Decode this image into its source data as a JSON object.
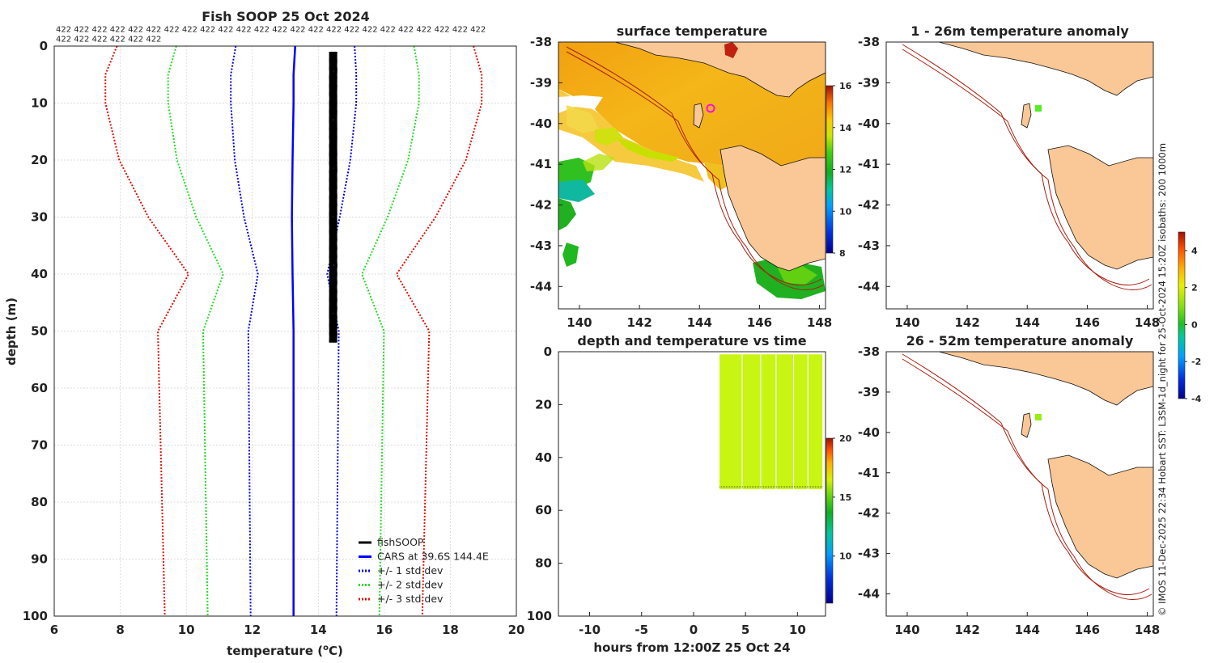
{
  "chart_data": [
    {
      "id": "profile",
      "type": "line",
      "title": "Fish SOOP 25 Oct 2024",
      "xlabel": "temperature (",
      "xlabel_sup": "o",
      "xlabel_end": "C)",
      "ylabel": "depth (m)",
      "xlim": [
        6,
        20
      ],
      "ylim": [
        100,
        0
      ],
      "xticks": [
        "6",
        "8",
        "10",
        "12",
        "14",
        "16",
        "18",
        "20"
      ],
      "yticks": [
        "0",
        "10",
        "20",
        "30",
        "40",
        "50",
        "60",
        "70",
        "80",
        "90",
        "100"
      ],
      "grid": true,
      "header_counts": [
        "422 422 422 422 422 422 422 422 422 422 422 422 422 422 422 422 422 422 422 422 422 422 422 422",
        "422 422 422 422 422 422"
      ],
      "legend_position": "bottom-right",
      "legend": [
        "fishSOOP",
        "CARS at 39.6S 144.4E",
        "+/- 1 std dev",
        "+/- 2 std dev",
        "+/- 3 std dev"
      ],
      "cars_depth": [
        0,
        5,
        10,
        20,
        30,
        40,
        50,
        100
      ],
      "cars_mean": [
        13.3,
        13.25,
        13.25,
        13.22,
        13.2,
        13.22,
        13.25,
        13.25
      ],
      "cars_std": [
        1.8,
        1.9,
        1.9,
        1.75,
        1.45,
        1.05,
        1.37,
        1.3
      ],
      "fishsoop": {
        "depth_min": 1,
        "depth_max": 52.5,
        "temp_min": 14.35,
        "temp_max": 14.55
      },
      "colors": {
        "fishsoop": "#000000",
        "cars": "#0000ff",
        "std1": "#0000dd",
        "std2": "#22dd22",
        "std3": "#dd1100"
      }
    },
    {
      "id": "sst",
      "type": "heatmap",
      "title": "surface temperature",
      "xticks": [
        "140",
        "142",
        "144",
        "146",
        "148"
      ],
      "yticks": [
        "-38",
        "-39",
        "-40",
        "-41",
        "-42",
        "-43",
        "-44"
      ],
      "lon_range": [
        139.3,
        148.2
      ],
      "lat_range": [
        -44.6,
        -38
      ],
      "colorbar_ticks": [
        "8",
        "10",
        "12",
        "14",
        "16"
      ],
      "clim": [
        8,
        16
      ],
      "station": {
        "lon": 144.4,
        "lat": -39.65
      }
    },
    {
      "id": "timeseries",
      "type": "scatter",
      "title": "depth and temperature vs time",
      "xlabel": "hours from 12:00Z 25 Oct 24",
      "xticks": [
        "-10",
        "-5",
        "0",
        "5",
        "10"
      ],
      "yticks": [
        "0",
        "20",
        "40",
        "60",
        "80",
        "100"
      ],
      "xlim": [
        -13,
        12.7
      ],
      "ylim": [
        100,
        0
      ],
      "data_hours": [
        2.5,
        12.4
      ],
      "depth_range": [
        1,
        52
      ],
      "colorbar_ticks": [
        "10",
        "15",
        "20"
      ],
      "clim": [
        6,
        20
      ],
      "point_color": "#c8f512"
    },
    {
      "id": "anom1",
      "type": "heatmap",
      "title": "1 - 26m temperature anomaly",
      "xticks": [
        "140",
        "142",
        "144",
        "146",
        "148"
      ],
      "yticks": [
        "-38",
        "-39",
        "-40",
        "-41",
        "-42",
        "-43",
        "-44"
      ],
      "station": {
        "lon": 144.4,
        "lat": -39.65
      },
      "station_color": "#55ee22"
    },
    {
      "id": "anom2",
      "type": "heatmap",
      "title": "26 - 52m temperature anomaly",
      "xticks": [
        "140",
        "142",
        "144",
        "146",
        "148"
      ],
      "yticks": [
        "-38",
        "-39",
        "-40",
        "-41",
        "-42",
        "-43",
        "-44"
      ],
      "station": {
        "lon": 144.4,
        "lat": -39.65
      },
      "station_color": "#99ee11"
    }
  ],
  "anomaly_colorbar": {
    "ticks": [
      "4",
      "2",
      "0",
      "-2",
      "-4"
    ],
    "clim": [
      -4,
      5
    ]
  },
  "credit": "© IMOS 11-Dec-2025 22:34 Hobart SST: L3SM-1d_night for 25-Oct-2024 15:20Z isobaths: 200  1000m"
}
